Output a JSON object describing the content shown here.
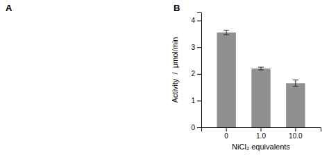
{
  "chart_data": {
    "type": "bar",
    "categories": [
      "0",
      "1.0",
      "10.0"
    ],
    "values": [
      3.55,
      2.2,
      1.65
    ],
    "errors": [
      0.08,
      0.05,
      0.12
    ],
    "color": "#909090",
    "xlabel": "NiCl₂ equivalents",
    "ylabel": "Activity  /  μmol/min",
    "ylim": [
      0,
      4.3
    ],
    "yticks": [
      0,
      1,
      2,
      3,
      4
    ],
    "annotations": [
      "A",
      "B"
    ],
    "grid": false
  }
}
